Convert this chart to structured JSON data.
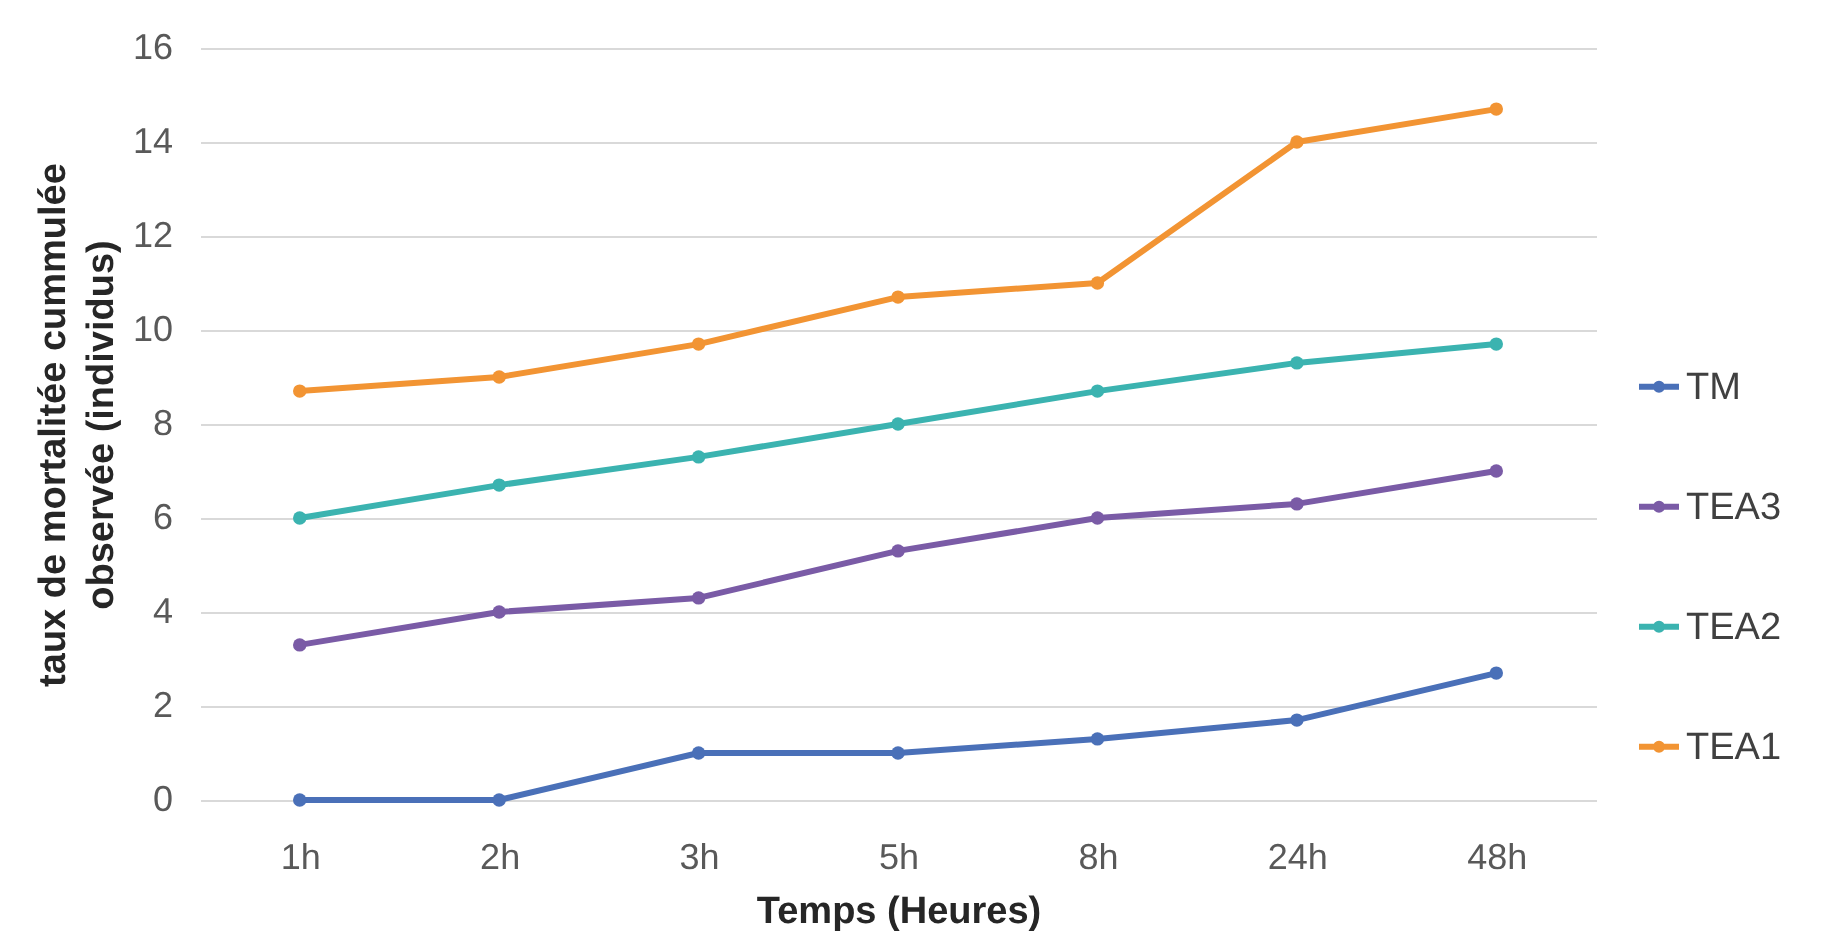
{
  "chart_data": {
    "type": "line",
    "xlabel": "Temps (Heures)",
    "ylabel": "taux de mortalitée cummulée observée (individus)",
    "categories": [
      "1h",
      "2h",
      "3h",
      "5h",
      "8h",
      "24h",
      "48h"
    ],
    "series": [
      {
        "name": "TM",
        "color": "#4a70b8",
        "values": [
          0,
          0,
          1,
          1,
          1.3,
          1.7,
          2.7
        ]
      },
      {
        "name": "TEA3",
        "color": "#7a5ba6",
        "values": [
          3.3,
          4,
          4.3,
          5.3,
          6,
          6.3,
          7
        ]
      },
      {
        "name": "TEA2",
        "color": "#3bb3b0",
        "values": [
          6,
          6.7,
          7.3,
          8,
          8.7,
          9.3,
          9.7
        ]
      },
      {
        "name": "TEA1",
        "color": "#f29433",
        "values": [
          8.7,
          9,
          9.7,
          10.7,
          11,
          14,
          14.7
        ]
      }
    ],
    "ylim": [
      0,
      16
    ],
    "yticks": [
      0,
      2,
      4,
      6,
      8,
      10,
      12,
      14,
      16
    ],
    "grid": "y",
    "legend": "right",
    "marker": "circle",
    "line_style": "solid"
  }
}
